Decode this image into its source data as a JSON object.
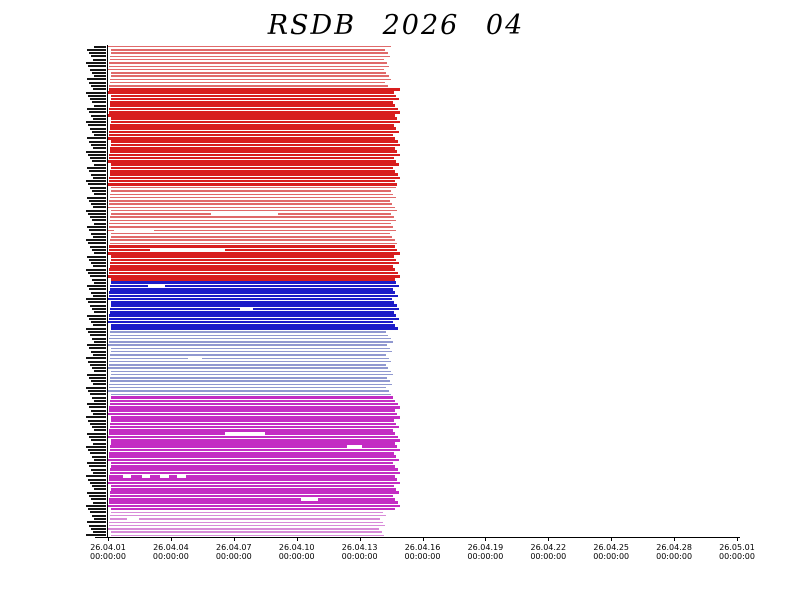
{
  "chart_data": {
    "type": "gantt-availability",
    "title": "RSDB 2026 04",
    "background": "#ffffff",
    "x_axis": {
      "tick_dates": [
        "26.04.01",
        "26.04.04",
        "26.04.07",
        "26.04.10",
        "26.04.13",
        "26.04.16",
        "26.04.19",
        "26.04.22",
        "26.04.25",
        "26.04.28",
        "26.05.01"
      ],
      "tick_time": "00:00:00",
      "range_days": [
        0,
        30
      ],
      "grid": false
    },
    "y_axis": {
      "row_count": 150,
      "labels_legible": false
    },
    "data_end_day": 13.9,
    "groups": [
      {
        "name": "group-1-light-red",
        "color": "#e06a6a",
        "rows": 13,
        "style": "thin",
        "end_day": 13.5
      },
      {
        "name": "group-2-red",
        "color": "#d81e1e",
        "rows": 30,
        "style": "solid",
        "end_day": 13.95
      },
      {
        "name": "group-3-light-red",
        "color": "#e06a6a",
        "rows": 18,
        "style": "thin",
        "end_day": 13.8
      },
      {
        "name": "group-4-red",
        "color": "#d81e1e",
        "rows": 11,
        "style": "solid",
        "end_day": 13.95
      },
      {
        "name": "group-5-blue",
        "color": "#1c1cc8",
        "rows": 15,
        "style": "solid",
        "end_day": 13.9
      },
      {
        "name": "group-6-light-blue",
        "color": "#9098d0",
        "rows": 20,
        "style": "thin",
        "end_day": 13.6
      },
      {
        "name": "group-7-magenta",
        "color": "#c32cc3",
        "rows": 35,
        "style": "solid",
        "end_day": 13.95
      },
      {
        "name": "group-8-light-magenta",
        "color": "#d88ad8",
        "rows": 8,
        "style": "thin",
        "end_day": 13.3
      }
    ],
    "gaps": [
      {
        "row": 51,
        "start_day": 4.9,
        "end_day": 8.1
      },
      {
        "row": 56,
        "start_day": 0.3,
        "end_day": 2.2
      },
      {
        "row": 62,
        "start_day": 2.0,
        "end_day": 5.6
      },
      {
        "row": 73,
        "start_day": 1.9,
        "end_day": 2.7
      },
      {
        "row": 80,
        "start_day": 6.3,
        "end_day": 6.9
      },
      {
        "row": 95,
        "start_day": 3.8,
        "end_day": 4.5
      },
      {
        "row": 118,
        "start_day": 5.6,
        "end_day": 7.5
      },
      {
        "row": 122,
        "start_day": 11.4,
        "end_day": 12.1
      },
      {
        "row": 131,
        "start_day": 0.7,
        "end_day": 1.1
      },
      {
        "row": 131,
        "start_day": 1.6,
        "end_day": 2.0
      },
      {
        "row": 131,
        "start_day": 2.5,
        "end_day": 2.9
      },
      {
        "row": 131,
        "start_day": 3.3,
        "end_day": 3.7
      },
      {
        "row": 138,
        "start_day": 9.2,
        "end_day": 10.0
      },
      {
        "row": 144,
        "start_day": 0.9,
        "end_day": 1.5
      }
    ]
  }
}
